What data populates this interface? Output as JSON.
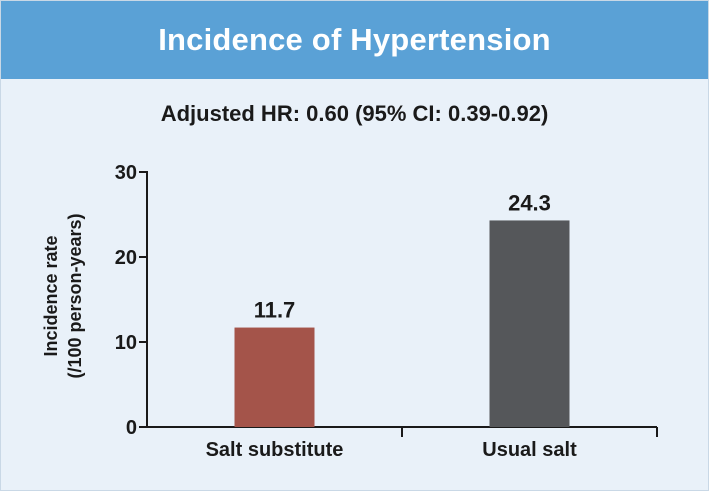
{
  "colors": {
    "header_bg": "#5aa1d6",
    "panel_bg": "#e9f1f9",
    "salt_substitute": "#a4544a",
    "usual_salt": "#55575a"
  },
  "chart_data": {
    "type": "bar",
    "title": "Incidence of Hypertension",
    "subtitle": "Adjusted HR: 0.60 (95% CI: 0.39-0.92)",
    "ylabel_lines": [
      "Incidence rate",
      "(/100 person-years)"
    ],
    "xlabel": "",
    "categories": [
      "Salt substitute",
      "Usual salt"
    ],
    "values": [
      11.7,
      24.3
    ],
    "value_labels": [
      "11.7",
      "24.3"
    ],
    "bar_colors": [
      "#a4544a",
      "#55575a"
    ],
    "ylim": [
      0,
      30
    ],
    "yticks": [
      0,
      10,
      20,
      30
    ],
    "ytick_labels": [
      "0",
      "10",
      "20",
      "30"
    ],
    "grid": false,
    "legend": "none"
  }
}
